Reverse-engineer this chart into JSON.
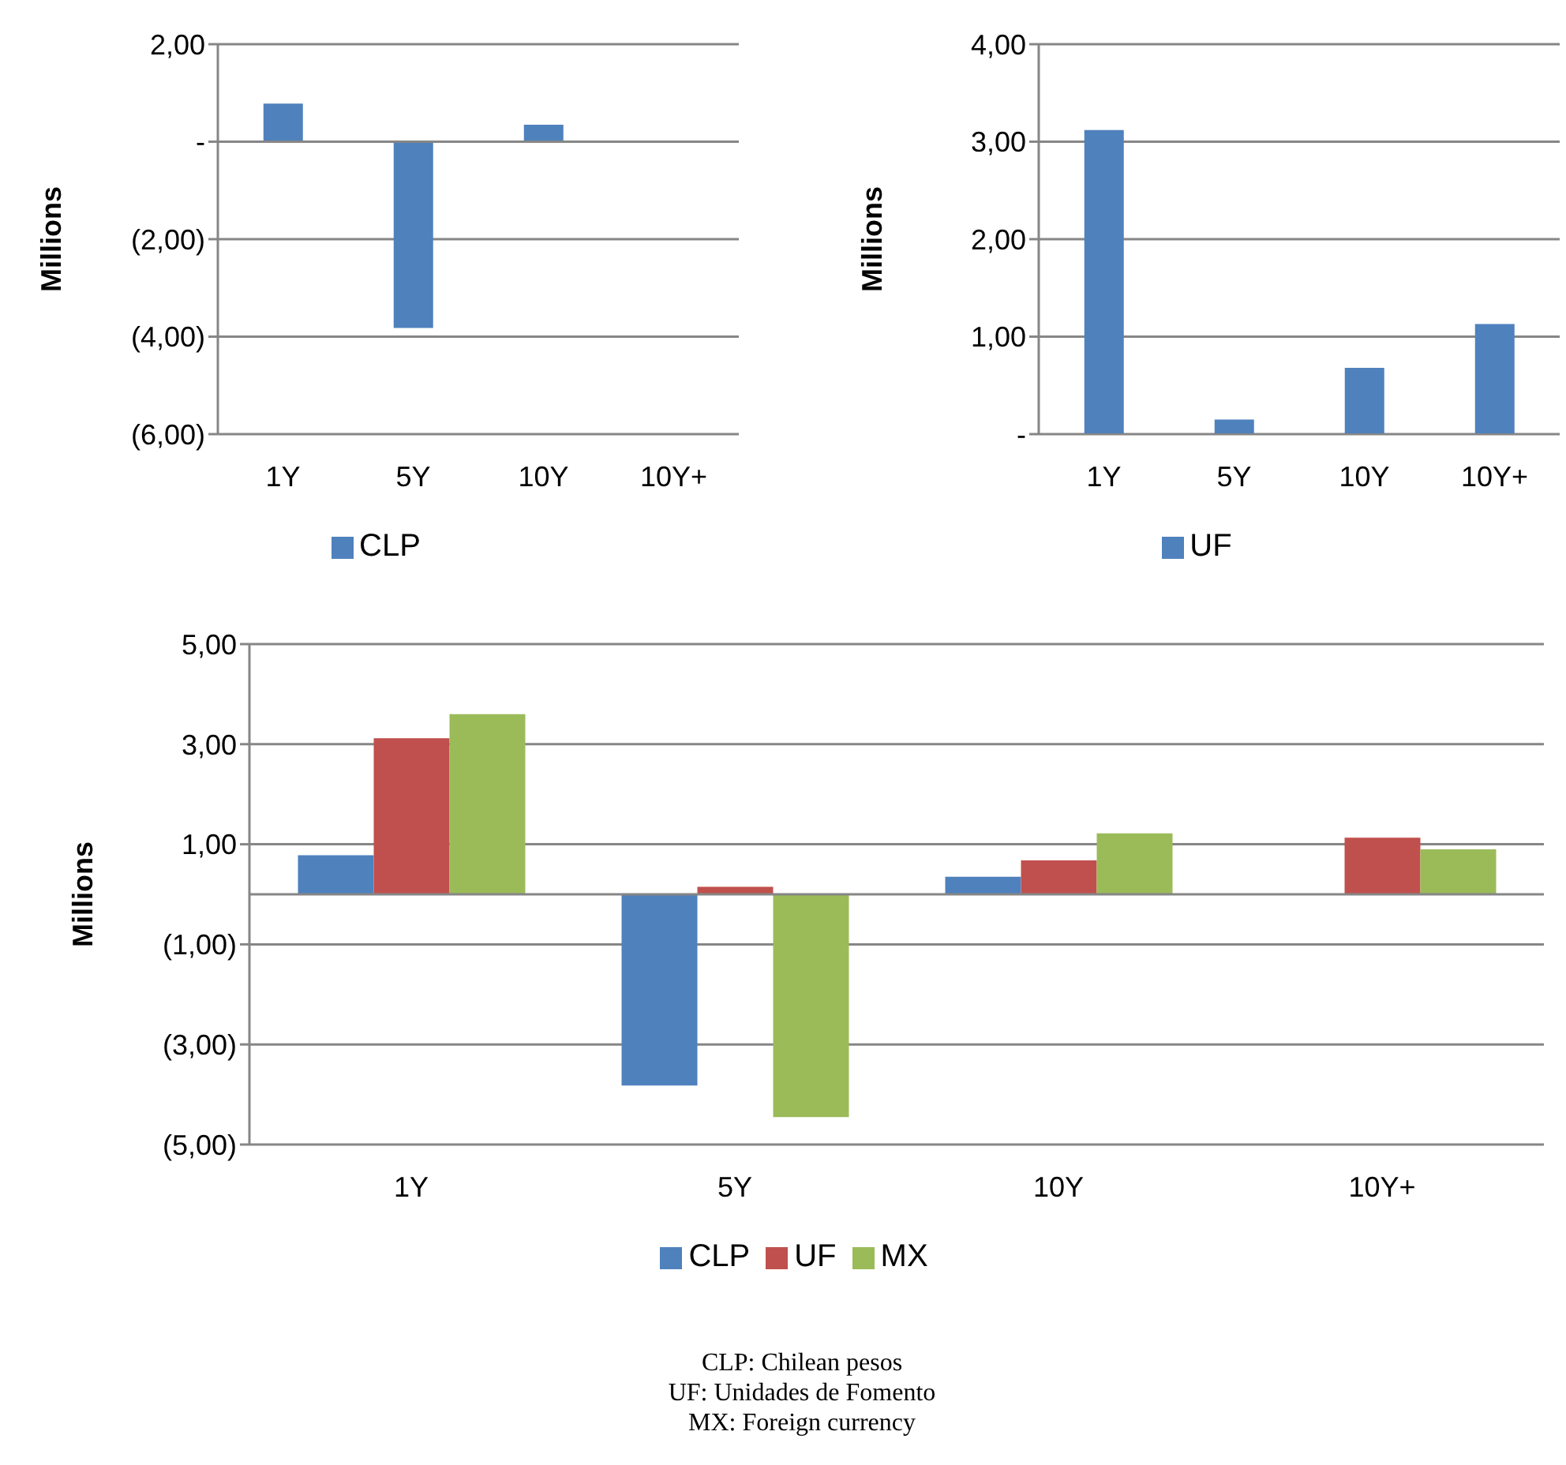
{
  "chart_data": [
    {
      "type": "bar",
      "ylabel": "Millions",
      "categories": [
        "1Y",
        "5Y",
        "10Y",
        "10Y+"
      ],
      "series": [
        {
          "name": "CLP",
          "color": "#4f81bd",
          "values": [
            0.78,
            -3.82,
            0.35,
            null
          ]
        }
      ],
      "ylim": [
        -6,
        2
      ],
      "yticks": [
        {
          "value": -6,
          "label": "(6,00)"
        },
        {
          "value": -4,
          "label": "(4,00)"
        },
        {
          "value": -2,
          "label": "(2,00)"
        },
        {
          "value": 0,
          "label": "-"
        },
        {
          "value": 2,
          "label": "2,00"
        }
      ],
      "grid": "y",
      "legend": "bottom"
    },
    {
      "type": "bar",
      "ylabel": "Millions",
      "categories": [
        "1Y",
        "5Y",
        "10Y",
        "10Y+"
      ],
      "series": [
        {
          "name": "UF",
          "color": "#4f81bd",
          "values": [
            3.12,
            0.15,
            0.68,
            1.13
          ]
        }
      ],
      "ylim": [
        0,
        4
      ],
      "yticks": [
        {
          "value": 0,
          "label": "-"
        },
        {
          "value": 1,
          "label": "1,00"
        },
        {
          "value": 2,
          "label": "2,00"
        },
        {
          "value": 3,
          "label": "3,00"
        },
        {
          "value": 4,
          "label": "4,00"
        }
      ],
      "grid": "y",
      "legend": "bottom"
    },
    {
      "type": "bar",
      "ylabel": "Millions",
      "categories": [
        "1Y",
        "5Y",
        "10Y",
        "10Y+"
      ],
      "series": [
        {
          "name": "CLP",
          "color": "#4f81bd",
          "values": [
            0.78,
            -3.82,
            0.35,
            null
          ]
        },
        {
          "name": "UF",
          "color": "#c0504d",
          "values": [
            3.12,
            0.15,
            0.68,
            1.13
          ]
        },
        {
          "name": "MX",
          "color": "#9bbb59",
          "values": [
            3.6,
            -4.45,
            1.22,
            0.9
          ]
        }
      ],
      "ylim": [
        -5,
        5
      ],
      "yticks": [
        {
          "value": -5,
          "label": "(5,00)"
        },
        {
          "value": -3,
          "label": "(3,00)"
        },
        {
          "value": -1,
          "label": "(1,00)"
        },
        {
          "value": 1,
          "label": "1,00"
        },
        {
          "value": 3,
          "label": "3,00"
        },
        {
          "value": 5,
          "label": "5,00"
        }
      ],
      "grid": "y",
      "legend": "bottom",
      "annotations": [
        "CLP: Chilean pesos",
        "UF: Unidades de Fomento",
        "MX: Foreign currency"
      ]
    }
  ]
}
